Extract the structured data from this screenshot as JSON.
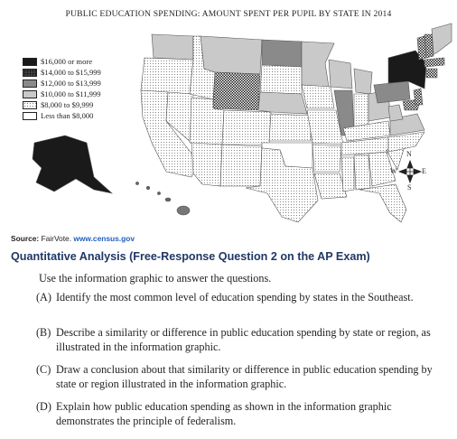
{
  "map": {
    "title": "PUBLIC EDUCATION SPENDING: AMOUNT SPENT PER PUPIL BY STATE IN 2014",
    "legend": [
      {
        "label": "$16,000 or more",
        "pattern": "black"
      },
      {
        "label": "$14,000 to $15,999",
        "pattern": "checker"
      },
      {
        "label": "$12,000 to $13,999",
        "pattern": "dark-gray"
      },
      {
        "label": "$10,000 to $11,999",
        "pattern": "light-gray"
      },
      {
        "label": "$8,000 to $9,999",
        "pattern": "dots"
      },
      {
        "label": "Less than $8,000",
        "pattern": "white"
      }
    ],
    "compass": {
      "n": "N",
      "s": "S",
      "e": "E",
      "w": "W"
    }
  },
  "source": {
    "label": "Source:",
    "text": " FairVote. ",
    "url": "www.census.gov"
  },
  "qa": {
    "heading": "Quantitative Analysis (Free-Response Question 2 on the AP Exam)",
    "intro": "Use the information graphic to answer the questions.",
    "questions": [
      {
        "letter": "(A)",
        "text": "Identify the most common level of education spending by states in the Southeast."
      },
      {
        "letter": "(B)",
        "text": "Describe a similarity or difference in public education spending by state or region, as illustrated in the information graphic."
      },
      {
        "letter": "(C)",
        "text": "Draw a conclusion about that similarity or difference in public education spending by state or region illustrated in the information graphic."
      },
      {
        "letter": "(D)",
        "text": "Explain how public education spending as shown in the information graphic demonstrates the principle of federalism."
      }
    ]
  },
  "colors": {
    "heading": "#1f3864",
    "link": "#1f5fbf"
  }
}
